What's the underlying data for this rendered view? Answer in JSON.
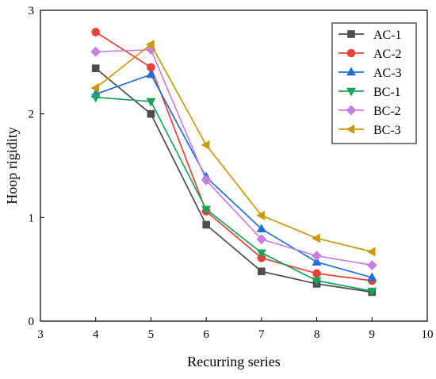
{
  "chart_data": {
    "type": "line",
    "title": "",
    "xlabel": "Recurring series",
    "ylabel": "Hoop rigidity",
    "xlim": [
      3,
      10
    ],
    "ylim": [
      0,
      3
    ],
    "xticks": [
      "3",
      "4",
      "5",
      "6",
      "7",
      "8",
      "9",
      "10"
    ],
    "yticks": [
      "0",
      "1",
      "2",
      "3"
    ],
    "grid": false,
    "legend_position": "top-right",
    "x": [
      4,
      5,
      6,
      7,
      8,
      9
    ],
    "series": [
      {
        "name": "AC-1",
        "color": "#4d4d4d",
        "marker": "square",
        "values": [
          2.44,
          2.0,
          0.93,
          0.48,
          0.36,
          0.28
        ]
      },
      {
        "name": "AC-2",
        "color": "#e8403a",
        "marker": "circle",
        "values": [
          2.79,
          2.45,
          1.06,
          0.61,
          0.46,
          0.39
        ]
      },
      {
        "name": "AC-3",
        "color": "#1f6fd6",
        "marker": "triangle-up",
        "values": [
          2.19,
          2.38,
          1.39,
          0.89,
          0.57,
          0.42
        ]
      },
      {
        "name": "BC-1",
        "color": "#1aa35a",
        "marker": "triangle-down",
        "values": [
          2.16,
          2.12,
          1.08,
          0.66,
          0.39,
          0.29
        ]
      },
      {
        "name": "BC-2",
        "color": "#c77fe0",
        "marker": "diamond",
        "values": [
          2.6,
          2.62,
          1.36,
          0.79,
          0.63,
          0.54
        ]
      },
      {
        "name": "BC-3",
        "color": "#c99a0c",
        "marker": "triangle-left",
        "values": [
          2.25,
          2.67,
          1.7,
          1.02,
          0.8,
          0.67
        ]
      }
    ]
  }
}
